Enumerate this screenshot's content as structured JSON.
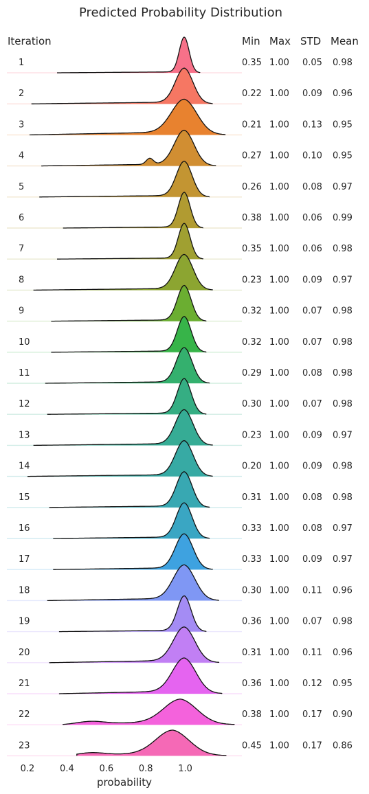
{
  "chart_data": {
    "type": "ridgeline",
    "title": "Predicted Probability Distribution",
    "xlabel": "probability",
    "xlim": [
      0.1,
      1.3
    ],
    "xticks": [
      "0.2",
      "0.4",
      "0.6",
      "0.8",
      "1.0"
    ],
    "grid": false,
    "row_header": "Iteration",
    "stat_headers": [
      "Min",
      "Max",
      "STD",
      "Mean"
    ],
    "series": [
      {
        "label": "1",
        "min": "0.35",
        "max": "1.00",
        "std": "0.05",
        "mean": "0.98",
        "color": "#f77189"
      },
      {
        "label": "2",
        "min": "0.22",
        "max": "1.00",
        "std": "0.09",
        "mean": "0.96",
        "color": "#f67763"
      },
      {
        "label": "3",
        "min": "0.21",
        "max": "1.00",
        "std": "0.13",
        "mean": "0.95",
        "color": "#e8822f"
      },
      {
        "label": "4",
        "min": "0.27",
        "max": "1.00",
        "std": "0.10",
        "mean": "0.95",
        "color": "#d18e32"
      },
      {
        "label": "5",
        "min": "0.26",
        "max": "1.00",
        "std": "0.08",
        "mean": "0.97",
        "color": "#c39532"
      },
      {
        "label": "6",
        "min": "0.38",
        "max": "1.00",
        "std": "0.06",
        "mean": "0.99",
        "color": "#b19b31"
      },
      {
        "label": "7",
        "min": "0.35",
        "max": "1.00",
        "std": "0.06",
        "mean": "0.98",
        "color": "#a0a031"
      },
      {
        "label": "8",
        "min": "0.23",
        "max": "1.00",
        "std": "0.09",
        "mean": "0.97",
        "color": "#8ca531"
      },
      {
        "label": "9",
        "min": "0.32",
        "max": "1.00",
        "std": "0.07",
        "mean": "0.98",
        "color": "#6bae31"
      },
      {
        "label": "10",
        "min": "0.32",
        "max": "1.00",
        "std": "0.07",
        "mean": "0.98",
        "color": "#37b449"
      },
      {
        "label": "11",
        "min": "0.29",
        "max": "1.00",
        "std": "0.08",
        "mean": "0.98",
        "color": "#34b06e"
      },
      {
        "label": "12",
        "min": "0.30",
        "max": "1.00",
        "std": "0.07",
        "mean": "0.98",
        "color": "#35ae83"
      },
      {
        "label": "13",
        "min": "0.23",
        "max": "1.00",
        "std": "0.09",
        "mean": "0.97",
        "color": "#36ac95"
      },
      {
        "label": "14",
        "min": "0.20",
        "max": "1.00",
        "std": "0.09",
        "mean": "0.98",
        "color": "#37aaa4"
      },
      {
        "label": "15",
        "min": "0.31",
        "max": "1.00",
        "std": "0.08",
        "mean": "0.98",
        "color": "#38a8b2"
      },
      {
        "label": "16",
        "min": "0.33",
        "max": "1.00",
        "std": "0.08",
        "mean": "0.97",
        "color": "#3aa6c3"
      },
      {
        "label": "17",
        "min": "0.33",
        "max": "1.00",
        "std": "0.09",
        "mean": "0.97",
        "color": "#3ea2e0"
      },
      {
        "label": "18",
        "min": "0.30",
        "max": "1.00",
        "std": "0.11",
        "mean": "0.96",
        "color": "#7f97f4"
      },
      {
        "label": "19",
        "min": "0.36",
        "max": "1.00",
        "std": "0.07",
        "mean": "0.98",
        "color": "#a48cf4"
      },
      {
        "label": "20",
        "min": "0.31",
        "max": "1.00",
        "std": "0.11",
        "mean": "0.96",
        "color": "#c17ff4"
      },
      {
        "label": "21",
        "min": "0.36",
        "max": "1.00",
        "std": "0.12",
        "mean": "0.95",
        "color": "#e564f0"
      },
      {
        "label": "22",
        "min": "0.38",
        "max": "1.00",
        "std": "0.17",
        "mean": "0.90",
        "color": "#f462dc"
      },
      {
        "label": "23",
        "min": "0.45",
        "max": "1.00",
        "std": "0.17",
        "mean": "0.86",
        "color": "#f569b6"
      }
    ]
  }
}
